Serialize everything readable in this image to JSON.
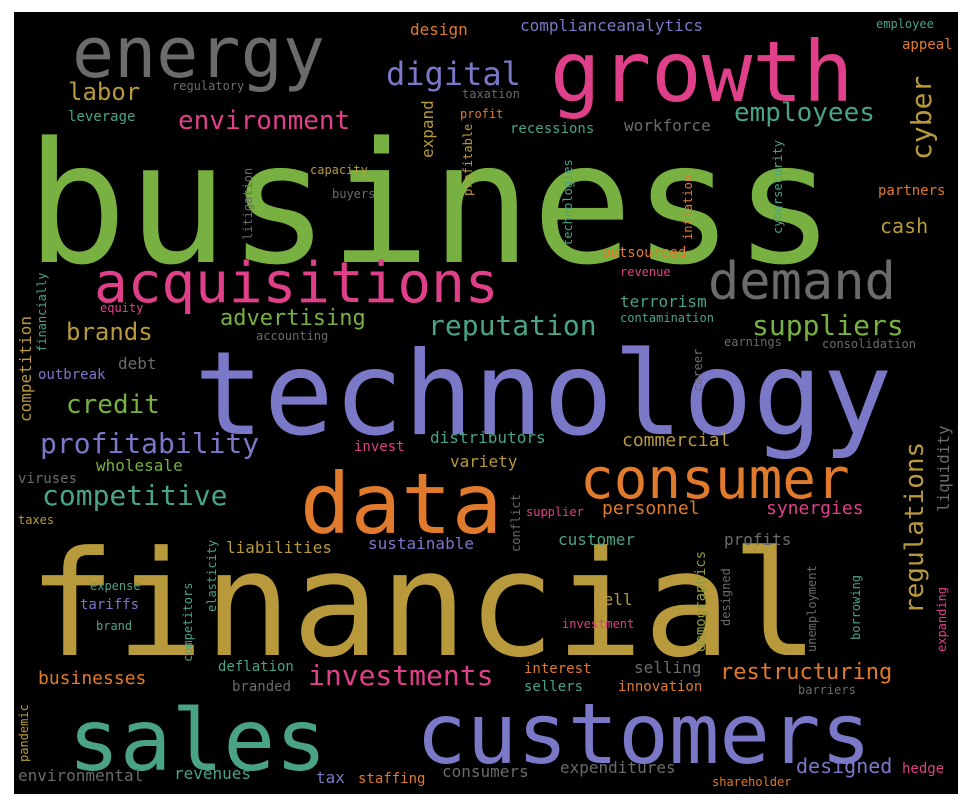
{
  "palette": {
    "green": "#78b141",
    "pink": "#e0408a",
    "purple": "#7b78c7",
    "gray": "#6b6b6b",
    "orange": "#e07a2c",
    "gold": "#b89a3c",
    "teal": "#4aa385",
    "olive": "#8e9a3c"
  },
  "words": [
    {
      "text": "business",
      "size": 168,
      "color": "#78b141"
    },
    {
      "text": "financial",
      "size": 146,
      "color": "#b89a3c"
    },
    {
      "text": "technology",
      "size": 116,
      "color": "#7b78c7"
    },
    {
      "text": "customers",
      "size": 84,
      "color": "#7b78c7"
    },
    {
      "text": "sales",
      "size": 86,
      "color": "#4aa385"
    },
    {
      "text": "growth",
      "size": 84,
      "color": "#e0408a"
    },
    {
      "text": "energy",
      "size": 70,
      "color": "#6b6b6b"
    },
    {
      "text": "data",
      "size": 84,
      "color": "#e07a2c"
    },
    {
      "text": "consumer",
      "size": 56,
      "color": "#e07a2c"
    },
    {
      "text": "acquisitions",
      "size": 56,
      "color": "#e0408a"
    },
    {
      "text": "demand",
      "size": 52,
      "color": "#6b6b6b"
    },
    {
      "text": "digital",
      "size": 32,
      "color": "#7b78c7"
    },
    {
      "text": "environment",
      "size": 26,
      "color": "#e0408a"
    },
    {
      "text": "employees",
      "size": 26,
      "color": "#4aa385"
    },
    {
      "text": "labor",
      "size": 24,
      "color": "#b89a3c"
    },
    {
      "text": "cyber",
      "size": 28,
      "color": "#b89a3c"
    },
    {
      "text": "cash",
      "size": 20,
      "color": "#b89a3c"
    },
    {
      "text": "suppliers",
      "size": 28,
      "color": "#78b141"
    },
    {
      "text": "reputation",
      "size": 28,
      "color": "#4aa385"
    },
    {
      "text": "advertising",
      "size": 22,
      "color": "#78b141"
    },
    {
      "text": "brands",
      "size": 24,
      "color": "#b89a3c"
    },
    {
      "text": "credit",
      "size": 26,
      "color": "#78b141"
    },
    {
      "text": "profitability",
      "size": 28,
      "color": "#7b78c7"
    },
    {
      "text": "competitive",
      "size": 28,
      "color": "#4aa385"
    },
    {
      "text": "regulations",
      "size": 26,
      "color": "#b89a3c"
    },
    {
      "text": "investments",
      "size": 28,
      "color": "#e0408a"
    },
    {
      "text": "restructuring",
      "size": 22,
      "color": "#e07a2c"
    },
    {
      "text": "designed",
      "size": 20,
      "color": "#7b78c7"
    },
    {
      "text": "commercial",
      "size": 18,
      "color": "#b89a3c"
    },
    {
      "text": "distributors",
      "size": 16,
      "color": "#4aa385"
    },
    {
      "text": "personnel",
      "size": 18,
      "color": "#e07a2c"
    },
    {
      "text": "synergies",
      "size": 18,
      "color": "#e0408a"
    },
    {
      "text": "wholesale",
      "size": 16,
      "color": "#78b141"
    },
    {
      "text": "variety",
      "size": 16,
      "color": "#b89a3c"
    },
    {
      "text": "liabilities",
      "size": 16,
      "color": "#b89a3c"
    },
    {
      "text": "sustainable",
      "size": 16,
      "color": "#7b78c7"
    },
    {
      "text": "customer",
      "size": 16,
      "color": "#4aa385"
    },
    {
      "text": "profits",
      "size": 16,
      "color": "#6b6b6b"
    },
    {
      "text": "businesses",
      "size": 18,
      "color": "#e07a2c"
    },
    {
      "text": "environmental",
      "size": 16,
      "color": "#6b6b6b"
    },
    {
      "text": "revenues",
      "size": 16,
      "color": "#4aa385"
    },
    {
      "text": "tax",
      "size": 16,
      "color": "#7b78c7"
    },
    {
      "text": "staffing",
      "size": 14,
      "color": "#e07a2c"
    },
    {
      "text": "consumers",
      "size": 16,
      "color": "#6b6b6b"
    },
    {
      "text": "expenditures",
      "size": 16,
      "color": "#6b6b6b"
    },
    {
      "text": "selling",
      "size": 16,
      "color": "#6b6b6b"
    },
    {
      "text": "innovation",
      "size": 14,
      "color": "#e07a2c"
    },
    {
      "text": "sellers",
      "size": 14,
      "color": "#4aa385"
    },
    {
      "text": "interest",
      "size": 14,
      "color": "#e07a2c"
    },
    {
      "text": "deflation",
      "size": 14,
      "color": "#4aa385"
    },
    {
      "text": "branded",
      "size": 14,
      "color": "#6b6b6b"
    },
    {
      "text": "complianceanalytics",
      "size": 16,
      "color": "#7b78c7"
    },
    {
      "text": "design",
      "size": 16,
      "color": "#e07a2c"
    },
    {
      "text": "regulatory",
      "size": 12,
      "color": "#6b6b6b"
    },
    {
      "text": "leverage",
      "size": 14,
      "color": "#4aa385"
    },
    {
      "text": "taxation",
      "size": 12,
      "color": "#6b6b6b"
    },
    {
      "text": "profit",
      "size": 12,
      "color": "#e07a2c"
    },
    {
      "text": "recessions",
      "size": 14,
      "color": "#4aa385"
    },
    {
      "text": "workforce",
      "size": 16,
      "color": "#6b6b6b"
    },
    {
      "text": "capacity",
      "size": 12,
      "color": "#b89a3c"
    },
    {
      "text": "buyers",
      "size": 12,
      "color": "#6b6b6b"
    },
    {
      "text": "outsourced",
      "size": 14,
      "color": "#e07a2c"
    },
    {
      "text": "revenue",
      "size": 12,
      "color": "#e0408a"
    },
    {
      "text": "terrorism",
      "size": 16,
      "color": "#4aa385"
    },
    {
      "text": "contamination",
      "size": 12,
      "color": "#4aa385"
    },
    {
      "text": "earnings",
      "size": 12,
      "color": "#6b6b6b"
    },
    {
      "text": "consolidation",
      "size": 12,
      "color": "#6b6b6b"
    },
    {
      "text": "accounting",
      "size": 12,
      "color": "#6b6b6b"
    },
    {
      "text": "equity",
      "size": 12,
      "color": "#e0408a"
    },
    {
      "text": "debt",
      "size": 16,
      "color": "#6b6b6b"
    },
    {
      "text": "outbreak",
      "size": 14,
      "color": "#7b78c7"
    },
    {
      "text": "invest",
      "size": 14,
      "color": "#e0408a"
    },
    {
      "text": "viruses",
      "size": 14,
      "color": "#6b6b6b"
    },
    {
      "text": "taxes",
      "size": 12,
      "color": "#b89a3c"
    },
    {
      "text": "supplier",
      "size": 12,
      "color": "#e0408a"
    },
    {
      "text": "sell",
      "size": 16,
      "color": "#b89a3c"
    },
    {
      "text": "investment",
      "size": 12,
      "color": "#e0408a"
    },
    {
      "text": "expense",
      "size": 12,
      "color": "#4aa385"
    },
    {
      "text": "tariffs",
      "size": 14,
      "color": "#7b78c7"
    },
    {
      "text": "brand",
      "size": 12,
      "color": "#4aa385"
    },
    {
      "text": "partners",
      "size": 14,
      "color": "#e07a2c"
    },
    {
      "text": "employee",
      "size": 12,
      "color": "#4aa385"
    },
    {
      "text": "appeal",
      "size": 14,
      "color": "#e07a2c"
    },
    {
      "text": "barriers",
      "size": 12,
      "color": "#6b6b6b"
    },
    {
      "text": "shareholder",
      "size": 12,
      "color": "#e07a2c"
    },
    {
      "text": "hedge",
      "size": 14,
      "color": "#e0408a"
    },
    {
      "text": "expand",
      "size": 16,
      "color": "#b89a3c"
    },
    {
      "text": "profitable",
      "size": 12,
      "color": "#b89a3c"
    },
    {
      "text": "technologies",
      "size": 12,
      "color": "#4aa385"
    },
    {
      "text": "inflation",
      "size": 12,
      "color": "#e07a2c"
    },
    {
      "text": "cybersecurity",
      "size": 12,
      "color": "#4aa385"
    },
    {
      "text": "litigation",
      "size": 12,
      "color": "#6b6b6b"
    },
    {
      "text": "competition",
      "size": 16,
      "color": "#b89a3c"
    },
    {
      "text": "financially",
      "size": 12,
      "color": "#4aa385"
    },
    {
      "text": "pandemic",
      "size": 12,
      "color": "#b89a3c"
    },
    {
      "text": "competitors",
      "size": 12,
      "color": "#4aa385"
    },
    {
      "text": "elasticity",
      "size": 12,
      "color": "#4aa385"
    },
    {
      "text": "conflict",
      "size": 12,
      "color": "#6b6b6b"
    },
    {
      "text": "demographics",
      "size": 14,
      "color": "#8e9a3c"
    },
    {
      "text": "designed",
      "size": 12,
      "color": "#6b6b6b"
    },
    {
      "text": "unemployment",
      "size": 12,
      "color": "#6b6b6b"
    },
    {
      "text": "borrowing",
      "size": 12,
      "color": "#4aa385"
    },
    {
      "text": "liquidity",
      "size": 16,
      "color": "#6b6b6b"
    },
    {
      "text": "expanding",
      "size": 12,
      "color": "#e0408a"
    },
    {
      "text": "career",
      "size": 12,
      "color": "#6b6b6b"
    }
  ]
}
